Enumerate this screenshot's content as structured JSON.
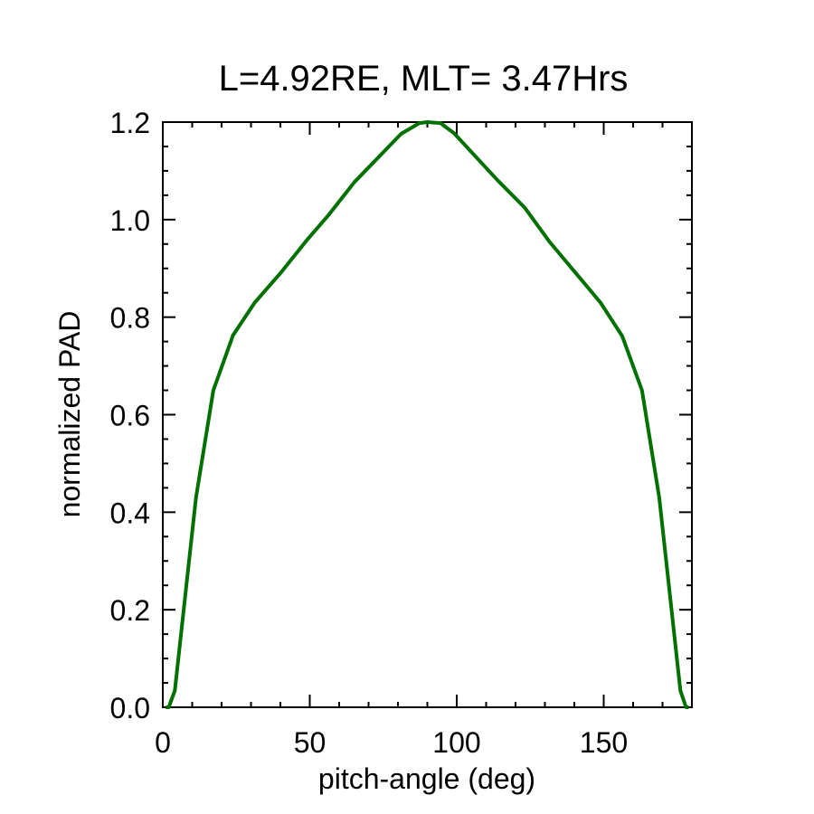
{
  "chart_data": {
    "type": "line",
    "title": "L=4.92RE, MLT= 3.47Hrs",
    "xlabel": "pitch-angle (deg)",
    "ylabel": "normalized PAD",
    "xlim": [
      0,
      180
    ],
    "ylim": [
      0,
      1.2
    ],
    "xticks": [
      "0",
      "50",
      "100",
      "150"
    ],
    "xtick_values": [
      0,
      50,
      100,
      150
    ],
    "yticks": [
      "0.0",
      "0.2",
      "0.4",
      "0.6",
      "0.8",
      "1.0",
      "1.2"
    ],
    "ytick_values": [
      0,
      0.2,
      0.4,
      0.6,
      0.8,
      1.0,
      1.2
    ],
    "grid": false,
    "series": [
      {
        "color": "#007000",
        "x": [
          1.0,
          2.0,
          4.1,
          11.3,
          17.2,
          23.9,
          31.3,
          40.0,
          49.3,
          56.5,
          65.2,
          81.1,
          87.3,
          90.0,
          94.5,
          99.1,
          114.0,
          123.2,
          131.4,
          148.9,
          156.3,
          163.0,
          168.9,
          176.1,
          178.0,
          178.9
        ],
        "y": [
          0.0,
          0.0,
          0.034,
          0.43,
          0.65,
          0.763,
          0.83,
          0.89,
          0.96,
          1.01,
          1.077,
          1.176,
          1.198,
          1.2,
          1.198,
          1.177,
          1.08,
          1.024,
          0.956,
          0.83,
          0.761,
          0.65,
          0.43,
          0.034,
          0.0,
          0.0
        ]
      }
    ]
  }
}
